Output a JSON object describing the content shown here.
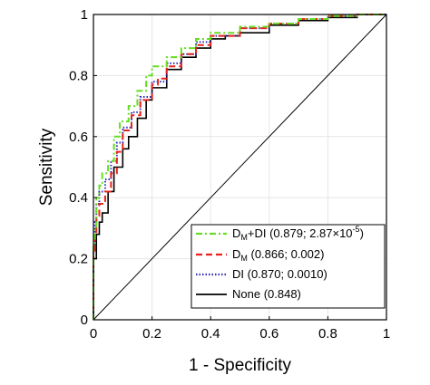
{
  "chart_data": {
    "type": "line",
    "xlabel": "1 - Specificity",
    "ylabel": "Sensitivity",
    "xlim": [
      0,
      1
    ],
    "ylim": [
      0,
      1
    ],
    "x_ticks": [
      "0",
      "0.2",
      "0.4",
      "0.6",
      "0.8",
      "1"
    ],
    "y_ticks": [
      "0",
      "0.2",
      "0.4",
      "0.6",
      "0.8",
      "1"
    ],
    "grid": true,
    "legend_position": "bottom-right",
    "legend": [
      {
        "main": "D",
        "sub": "M",
        "rest": "+DI (0.879; 2.87×10",
        "sup": "-5",
        "tail": ")",
        "color": "#66dd22",
        "style": "dash-dot"
      },
      {
        "main": "D",
        "sub": "M",
        "rest": " (0.866; 0.002)",
        "sup": "",
        "tail": "",
        "color": "#e8231e",
        "style": "dashed"
      },
      {
        "main": "DI (0.870; 0.0010)",
        "sub": "",
        "rest": "",
        "sup": "",
        "tail": "",
        "color": "#2c2cb8",
        "style": "dotted"
      },
      {
        "main": "None (0.848)",
        "sub": "",
        "rest": "",
        "sup": "",
        "tail": "",
        "color": "#000000",
        "style": "solid"
      }
    ],
    "series": [
      {
        "name": "DM+DI",
        "color": "#66dd22",
        "x": [
          0,
          0,
          0.005,
          0.01,
          0.02,
          0.03,
          0.05,
          0.07,
          0.09,
          0.12,
          0.15,
          0.18,
          0.2,
          0.25,
          0.3,
          0.35,
          0.4,
          0.5,
          0.6,
          0.7,
          0.8,
          0.9,
          1.0
        ],
        "y": [
          0,
          0.24,
          0.3,
          0.4,
          0.44,
          0.48,
          0.52,
          0.6,
          0.65,
          0.7,
          0.75,
          0.8,
          0.83,
          0.86,
          0.89,
          0.92,
          0.94,
          0.96,
          0.97,
          0.985,
          0.995,
          1.0,
          1.0
        ]
      },
      {
        "name": "DM",
        "color": "#e8231e",
        "x": [
          0,
          0,
          0.005,
          0.01,
          0.02,
          0.04,
          0.06,
          0.08,
          0.1,
          0.13,
          0.16,
          0.2,
          0.22,
          0.25,
          0.3,
          0.35,
          0.4,
          0.5,
          0.6,
          0.7,
          0.8,
          0.9,
          1.0
        ],
        "y": [
          0,
          0.22,
          0.28,
          0.34,
          0.38,
          0.42,
          0.48,
          0.55,
          0.62,
          0.67,
          0.72,
          0.77,
          0.79,
          0.83,
          0.87,
          0.9,
          0.93,
          0.955,
          0.97,
          0.985,
          0.995,
          1.0,
          1.0
        ]
      },
      {
        "name": "DI",
        "color": "#2c2cb8",
        "x": [
          0,
          0,
          0.005,
          0.01,
          0.02,
          0.04,
          0.06,
          0.08,
          0.1,
          0.13,
          0.16,
          0.2,
          0.25,
          0.3,
          0.35,
          0.4,
          0.5,
          0.6,
          0.7,
          0.8,
          0.9,
          1.0
        ],
        "y": [
          0,
          0.23,
          0.32,
          0.38,
          0.42,
          0.46,
          0.52,
          0.58,
          0.63,
          0.68,
          0.73,
          0.78,
          0.84,
          0.87,
          0.91,
          0.93,
          0.955,
          0.97,
          0.985,
          0.995,
          1.0,
          1.0
        ]
      },
      {
        "name": "None",
        "color": "#000000",
        "x": [
          0,
          0,
          0.01,
          0.02,
          0.03,
          0.05,
          0.07,
          0.1,
          0.12,
          0.15,
          0.18,
          0.2,
          0.25,
          0.3,
          0.35,
          0.4,
          0.45,
          0.5,
          0.6,
          0.7,
          0.8,
          0.9,
          1.0
        ],
        "y": [
          0,
          0.2,
          0.28,
          0.32,
          0.35,
          0.42,
          0.5,
          0.56,
          0.6,
          0.66,
          0.72,
          0.76,
          0.82,
          0.86,
          0.89,
          0.92,
          0.93,
          0.94,
          0.965,
          0.98,
          0.99,
          1.0,
          1.0
        ]
      }
    ],
    "reference_line": {
      "x": [
        0,
        1
      ],
      "y": [
        0,
        1
      ],
      "color": "#000000"
    }
  }
}
